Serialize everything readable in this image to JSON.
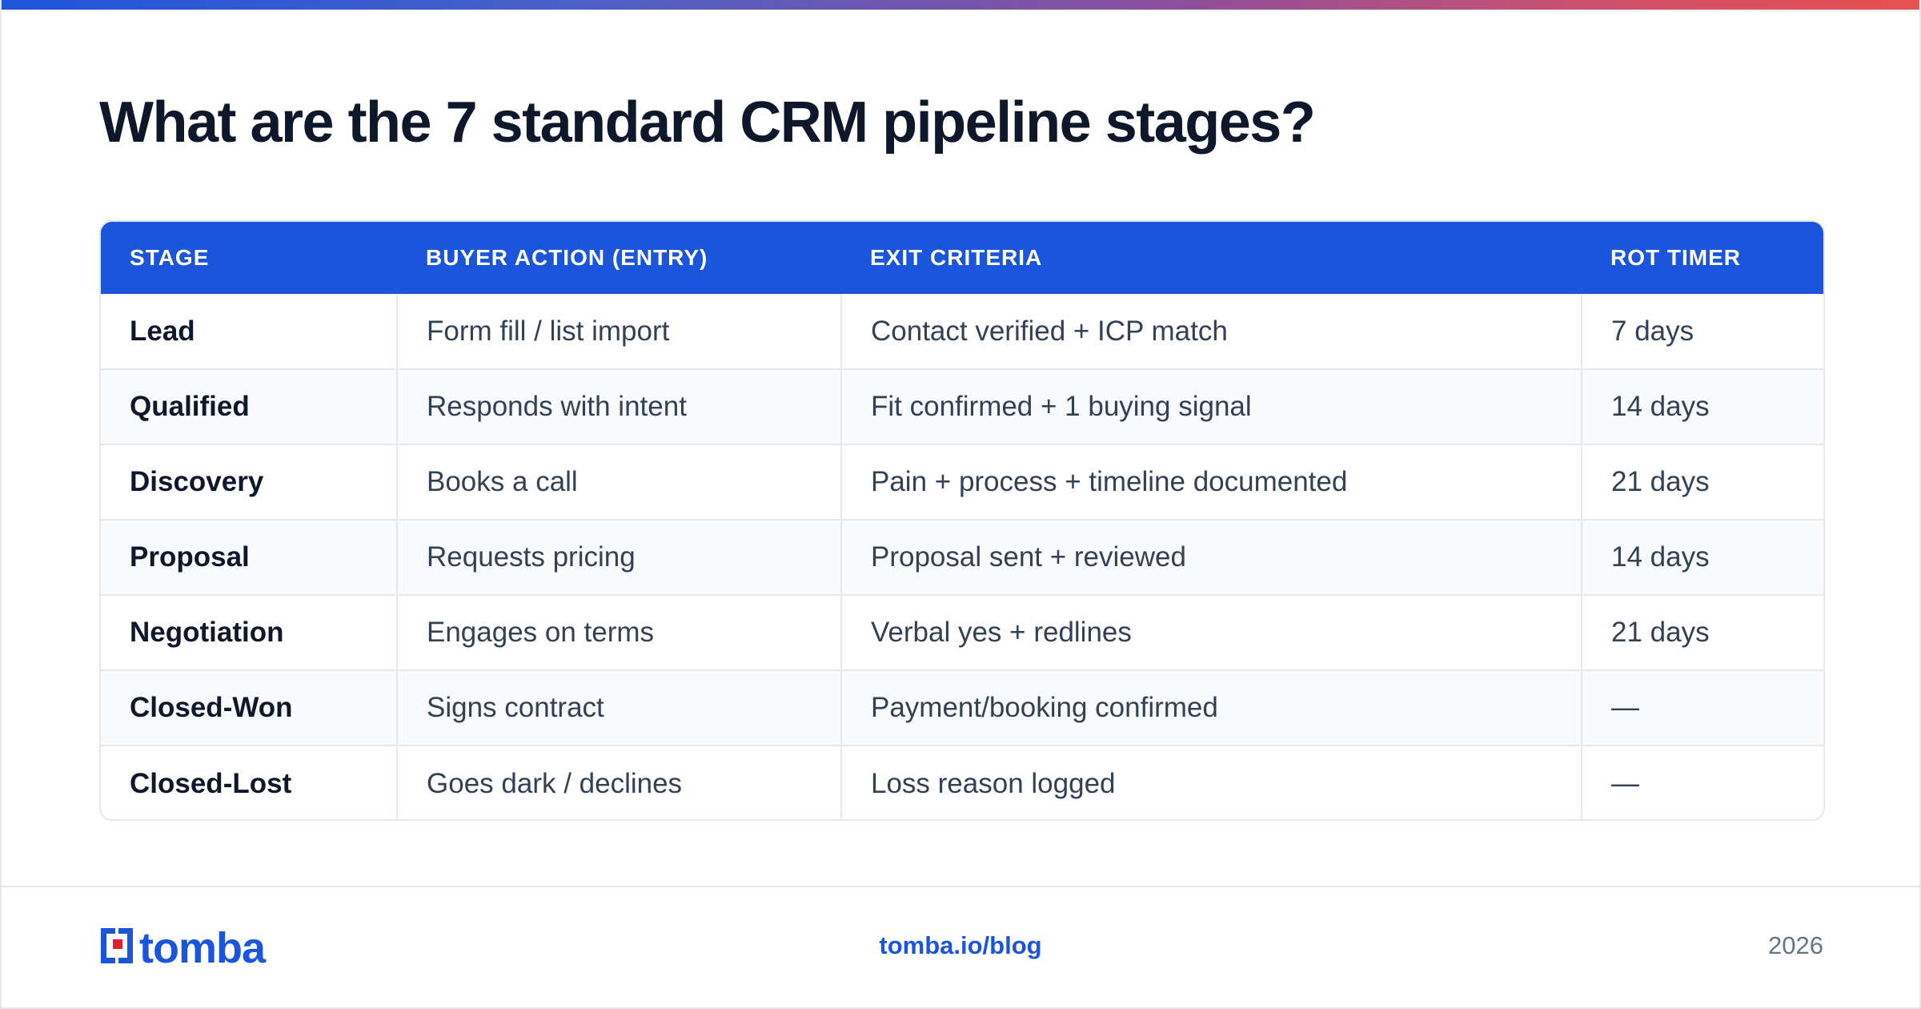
{
  "title": "What are the 7 standard CRM pipeline stages?",
  "table": {
    "headers": [
      "STAGE",
      "BUYER ACTION (ENTRY)",
      "EXIT CRITERIA",
      "ROT TIMER"
    ],
    "rows": [
      [
        "Lead",
        "Form fill / list import",
        "Contact verified + ICP match",
        "7 days"
      ],
      [
        "Qualified",
        "Responds with intent",
        "Fit confirmed + 1 buying signal",
        "14 days"
      ],
      [
        "Discovery",
        "Books a call",
        "Pain + process + timeline documented",
        "21 days"
      ],
      [
        "Proposal",
        "Requests pricing",
        "Proposal sent + reviewed",
        "14 days"
      ],
      [
        "Negotiation",
        "Engages on terms",
        "Verbal yes + redlines",
        "21 days"
      ],
      [
        "Closed-Won",
        "Signs contract",
        "Payment/booking confirmed",
        "—"
      ],
      [
        "Closed-Lost",
        "Goes dark / declines",
        "Loss reason logged",
        "—"
      ]
    ]
  },
  "footer": {
    "logo_text": "tomba",
    "link": "tomba.io/blog",
    "year": "2026"
  },
  "colors": {
    "accent": "#1b55db",
    "logo_red": "#e11d2e",
    "heading": "#0f172a",
    "body_text": "#334155",
    "muted": "#64748b"
  }
}
